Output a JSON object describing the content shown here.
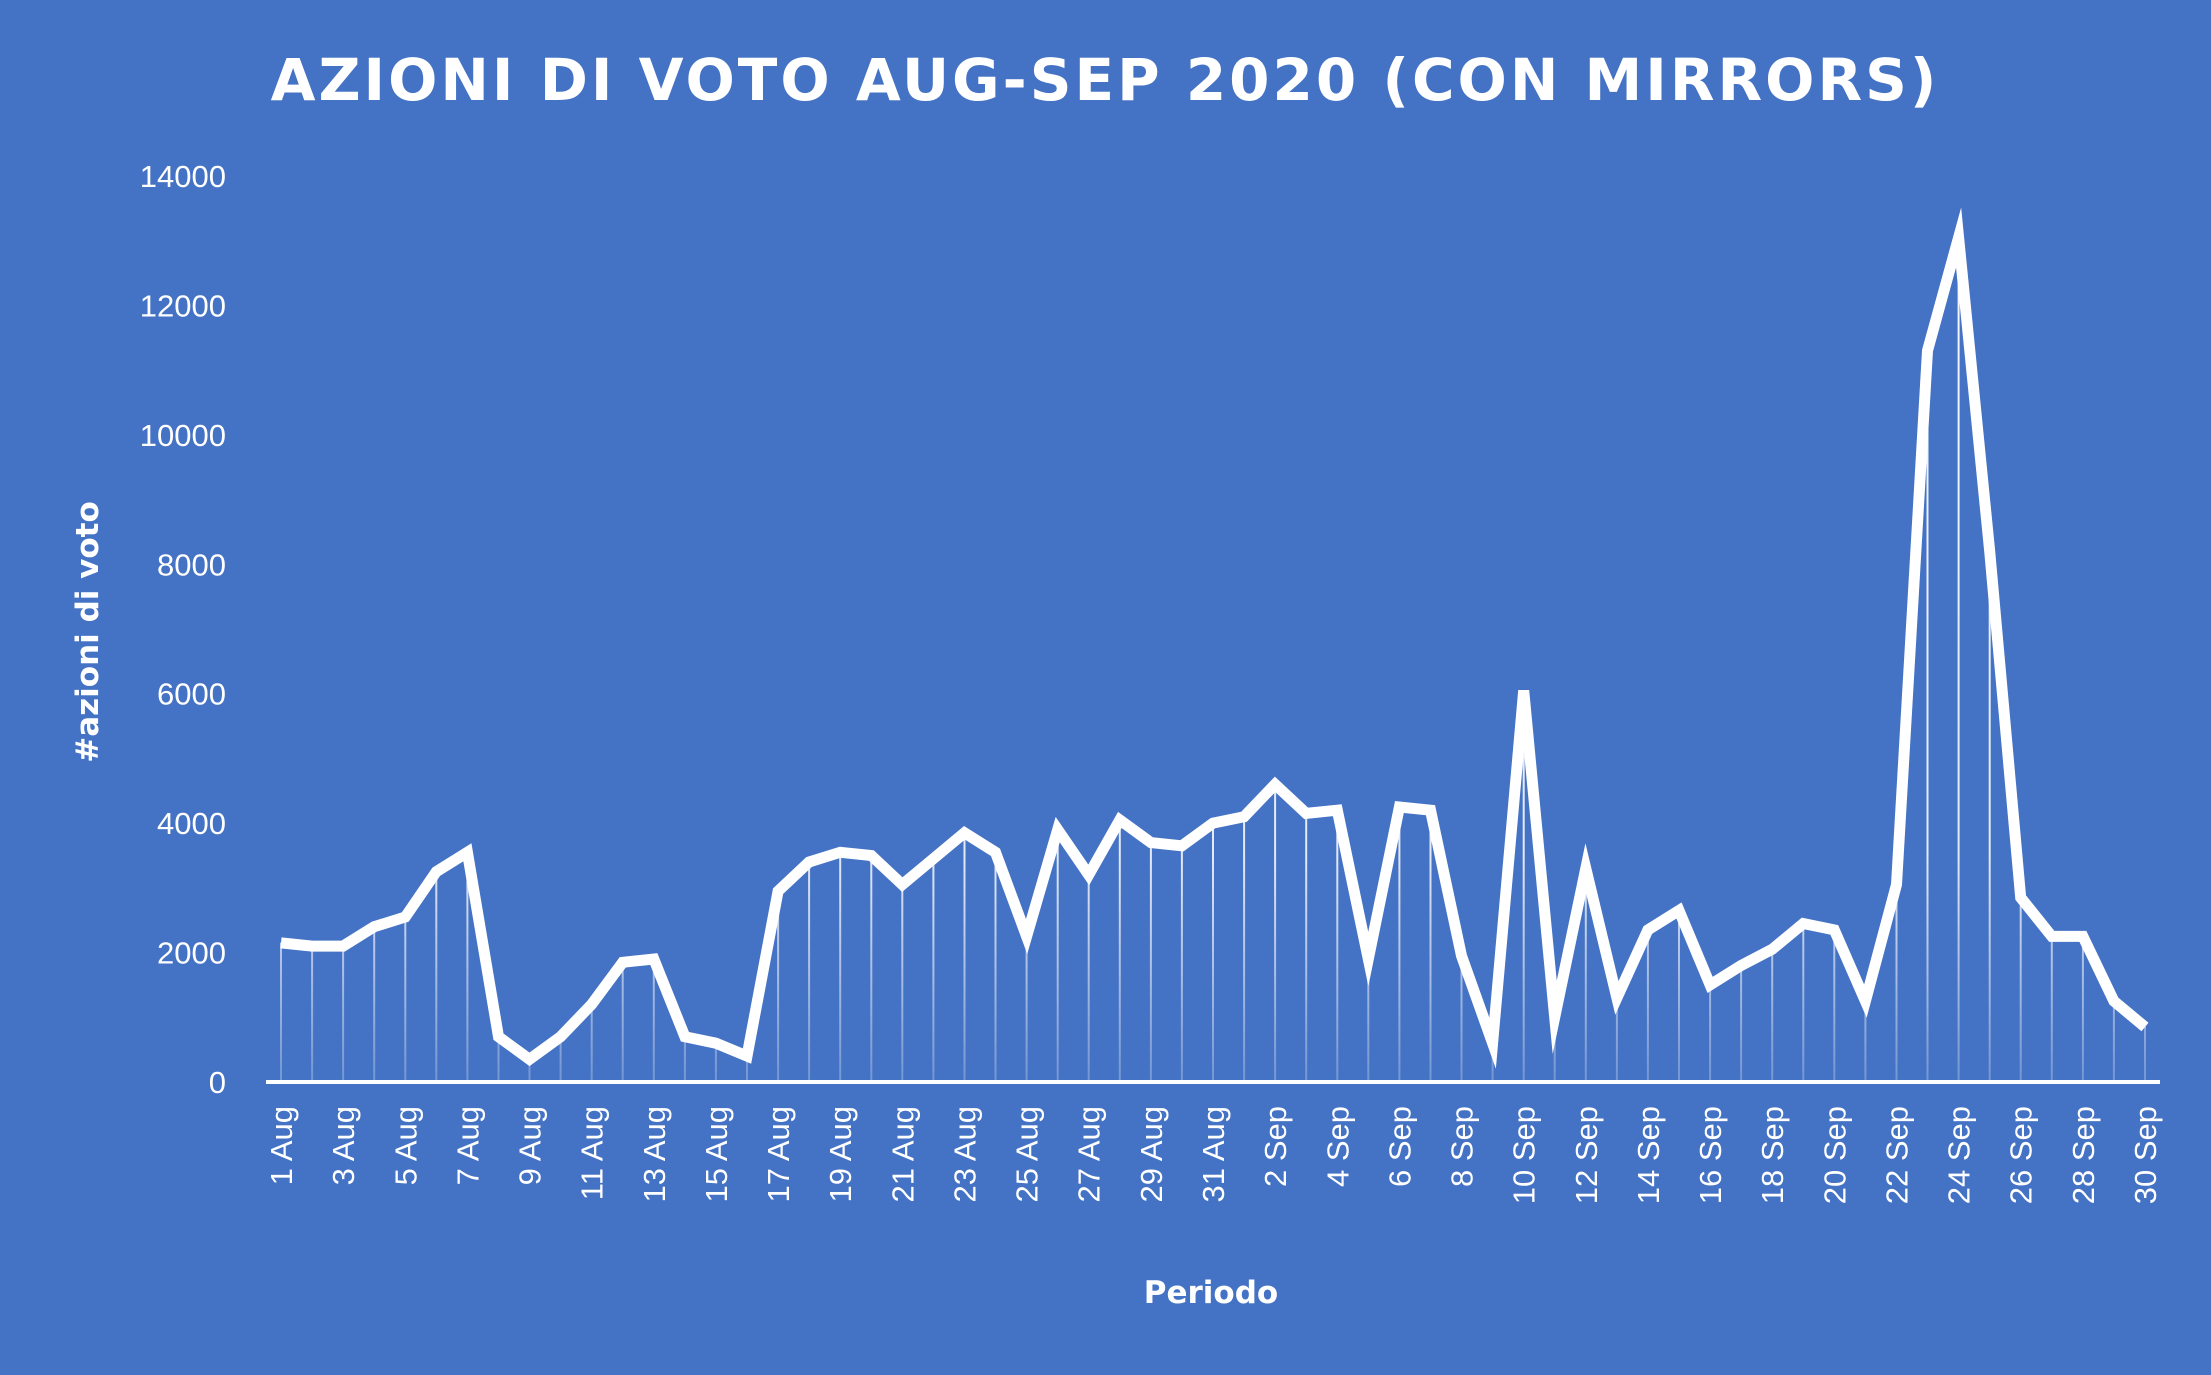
{
  "chart_data": {
    "type": "line",
    "title": "AZIONI DI VOTO AUG-SEP 2020 (CON MIRRORS)",
    "xlabel": "Periodo",
    "ylabel": "#azioni di voto",
    "ylim": [
      0,
      14000
    ],
    "y_ticks": [
      "0",
      "2000",
      "4000",
      "6000",
      "8000",
      "10000",
      "12000",
      "14000"
    ],
    "grid": false,
    "drop_lines": true,
    "colors": {
      "background": "#4472C4",
      "line": "#FFFFFF",
      "text": "#FFFFFF"
    },
    "x_tick_labels": [
      "1 Aug",
      "3 Aug",
      "5 Aug",
      "7 Aug",
      "9 Aug",
      "11 Aug",
      "13 Aug",
      "15 Aug",
      "17 Aug",
      "19 Aug",
      "21 Aug",
      "23 Aug",
      "25 Aug",
      "27 Aug",
      "29 Aug",
      "31 Aug",
      "2 Sep",
      "4 Sep",
      "6 Sep",
      "8 Sep",
      "10 Sep",
      "12 Sep",
      "14 Sep",
      "16 Sep",
      "18 Sep",
      "20 Sep",
      "22 Sep",
      "24 Sep",
      "26 Sep",
      "28 Sep",
      "30 Sep"
    ],
    "x": [
      "1 Aug",
      "2 Aug",
      "3 Aug",
      "4 Aug",
      "5 Aug",
      "6 Aug",
      "7 Aug",
      "8 Aug",
      "9 Aug",
      "10 Aug",
      "11 Aug",
      "12 Aug",
      "13 Aug",
      "14 Aug",
      "15 Aug",
      "16 Aug",
      "17 Aug",
      "18 Aug",
      "19 Aug",
      "20 Aug",
      "21 Aug",
      "22 Aug",
      "23 Aug",
      "24 Aug",
      "25 Aug",
      "26 Aug",
      "27 Aug",
      "28 Aug",
      "29 Aug",
      "30 Aug",
      "31 Aug",
      "1 Sep",
      "2 Sep",
      "3 Sep",
      "4 Sep",
      "5 Sep",
      "6 Sep",
      "7 Sep",
      "8 Sep",
      "9 Sep",
      "10 Sep",
      "11 Sep",
      "12 Sep",
      "13 Sep",
      "14 Sep",
      "15 Sep",
      "16 Sep",
      "17 Sep",
      "18 Sep",
      "19 Sep",
      "20 Sep",
      "21 Sep",
      "22 Sep",
      "23 Sep",
      "24 Sep",
      "25 Sep",
      "26 Sep",
      "27 Sep",
      "28 Sep",
      "29 Sep",
      "30 Sep"
    ],
    "series": [
      {
        "values": [
          2150,
          2100,
          2100,
          2400,
          2550,
          3250,
          3550,
          700,
          350,
          700,
          1200,
          1850,
          1900,
          700,
          600,
          400,
          2950,
          3400,
          3550,
          3500,
          3050,
          3450,
          3850,
          3550,
          2250,
          3900,
          3200,
          4050,
          3700,
          3650,
          4000,
          4100,
          4600,
          4150,
          4200,
          1900,
          4250,
          4200,
          1950,
          600,
          6050,
          1000,
          3300,
          1300,
          2350,
          2650,
          1500,
          1800,
          2050,
          2450,
          2350,
          1250,
          3050,
          11300,
          13050,
          8200,
          2850,
          2250,
          2250,
          1250,
          850
        ]
      }
    ]
  }
}
